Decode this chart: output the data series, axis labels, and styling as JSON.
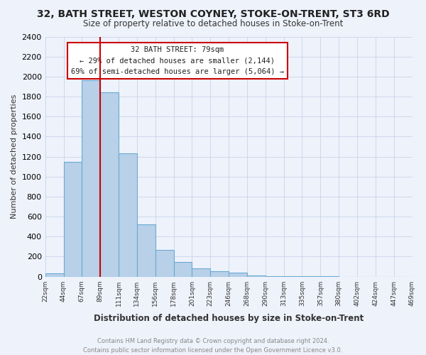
{
  "title": "32, BATH STREET, WESTON COYNEY, STOKE-ON-TRENT, ST3 6RD",
  "subtitle": "Size of property relative to detached houses in Stoke-on-Trent",
  "xlabel": "Distribution of detached houses by size in Stoke-on-Trent",
  "ylabel": "Number of detached properties",
  "bar_values": [
    30,
    1150,
    1960,
    1840,
    1230,
    520,
    270,
    150,
    80,
    55,
    42,
    15,
    8,
    5,
    3,
    2,
    1,
    1,
    1,
    1
  ],
  "bin_labels": [
    "22sqm",
    "44sqm",
    "67sqm",
    "89sqm",
    "111sqm",
    "134sqm",
    "156sqm",
    "178sqm",
    "201sqm",
    "223sqm",
    "246sqm",
    "268sqm",
    "290sqm",
    "313sqm",
    "335sqm",
    "357sqm",
    "380sqm",
    "402sqm",
    "424sqm",
    "447sqm",
    "469sqm"
  ],
  "bar_color": "#b8d0e8",
  "bar_edge_color": "#6aaad4",
  "vline_color": "#cc0000",
  "annotation_title": "32 BATH STREET: 79sqm",
  "annotation_line1": "← 29% of detached houses are smaller (2,144)",
  "annotation_line2": "69% of semi-detached houses are larger (5,064) →",
  "box_edge_color": "#cc0000",
  "ylim": [
    0,
    2400
  ],
  "yticks": [
    0,
    200,
    400,
    600,
    800,
    1000,
    1200,
    1400,
    1600,
    1800,
    2000,
    2200,
    2400
  ],
  "footer_line1": "Contains HM Land Registry data © Crown copyright and database right 2024.",
  "footer_line2": "Contains public sector information licensed under the Open Government Licence v3.0.",
  "background_color": "#eef2fb"
}
